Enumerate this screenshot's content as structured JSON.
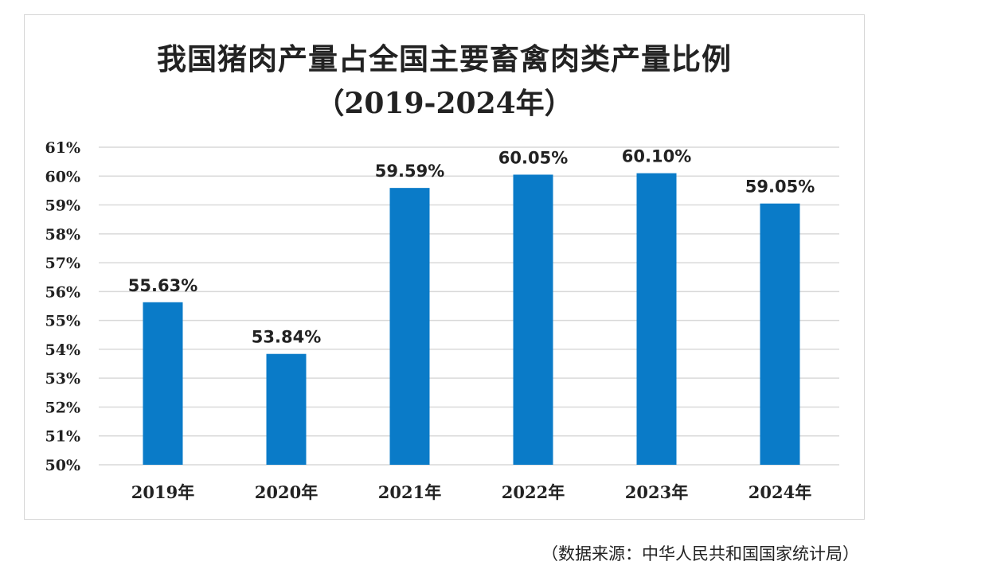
{
  "chart_data": {
    "type": "bar",
    "title": "我国猪肉产量占全国主要畜禽肉类产量比例",
    "subtitle": "（2019-2024年）",
    "categories": [
      "2019年",
      "2020年",
      "2021年",
      "2022年",
      "2023年",
      "2024年"
    ],
    "values": [
      55.63,
      53.84,
      59.59,
      60.05,
      60.1,
      59.05
    ],
    "data_labels": [
      "55.63%",
      "53.84%",
      "59.59%",
      "60.05%",
      "60.10%",
      "59.05%"
    ],
    "ylim": [
      50,
      61
    ],
    "yticks": [
      "50%",
      "51%",
      "52%",
      "53%",
      "54%",
      "55%",
      "56%",
      "57%",
      "58%",
      "59%",
      "60%",
      "61%"
    ],
    "xlabel": "",
    "ylabel": "",
    "grid": true,
    "bar_color": "#0a7bc8",
    "grid_color": "#d9d9d9"
  },
  "source": "（数据来源：中华人民共和国国家统计局）"
}
